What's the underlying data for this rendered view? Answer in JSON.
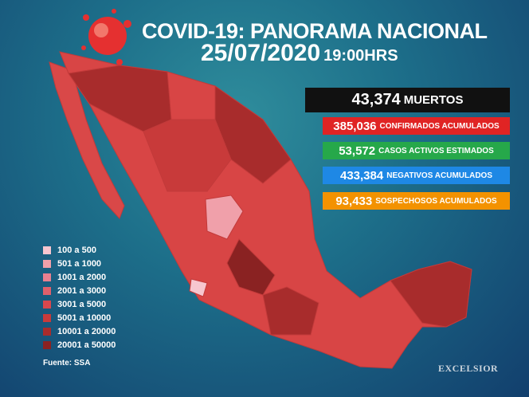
{
  "header": {
    "title": "COVID-19: PANORAMA NACIONAL",
    "date": "25/07/2020",
    "time": "19:00HRS"
  },
  "stats": [
    {
      "value": "43,374",
      "label": "MUERTOS"
    },
    {
      "value": "385,036",
      "label": "CONFIRMADOS ACUMULADOS"
    },
    {
      "value": "53,572",
      "label": "CASOS ACTIVOS ESTIMADOS"
    },
    {
      "value": "433,384",
      "label": "NEGATIVOS ACUMULADOS"
    },
    {
      "value": "93,433",
      "label": "SOSPECHOSOS ACUMULADOS"
    }
  ],
  "legend": [
    {
      "label": "100 a 500",
      "color": "#f7c6cf"
    },
    {
      "label": "501 a 1000",
      "color": "#f0a0aa"
    },
    {
      "label": "1001 a 2000",
      "color": "#ea8090"
    },
    {
      "label": "2001 a 3000",
      "color": "#e0606b"
    },
    {
      "label": "3001 a 5000",
      "color": "#d9474d"
    },
    {
      "label": "5001 a 10000",
      "color": "#c83a3a"
    },
    {
      "label": "10001 a 20000",
      "color": "#a82c2c"
    },
    {
      "label": "20001 a 50000",
      "color": "#8a2222"
    }
  ],
  "footer": {
    "source": "Fuente: SSA",
    "logo": "EXCELSIOR"
  }
}
